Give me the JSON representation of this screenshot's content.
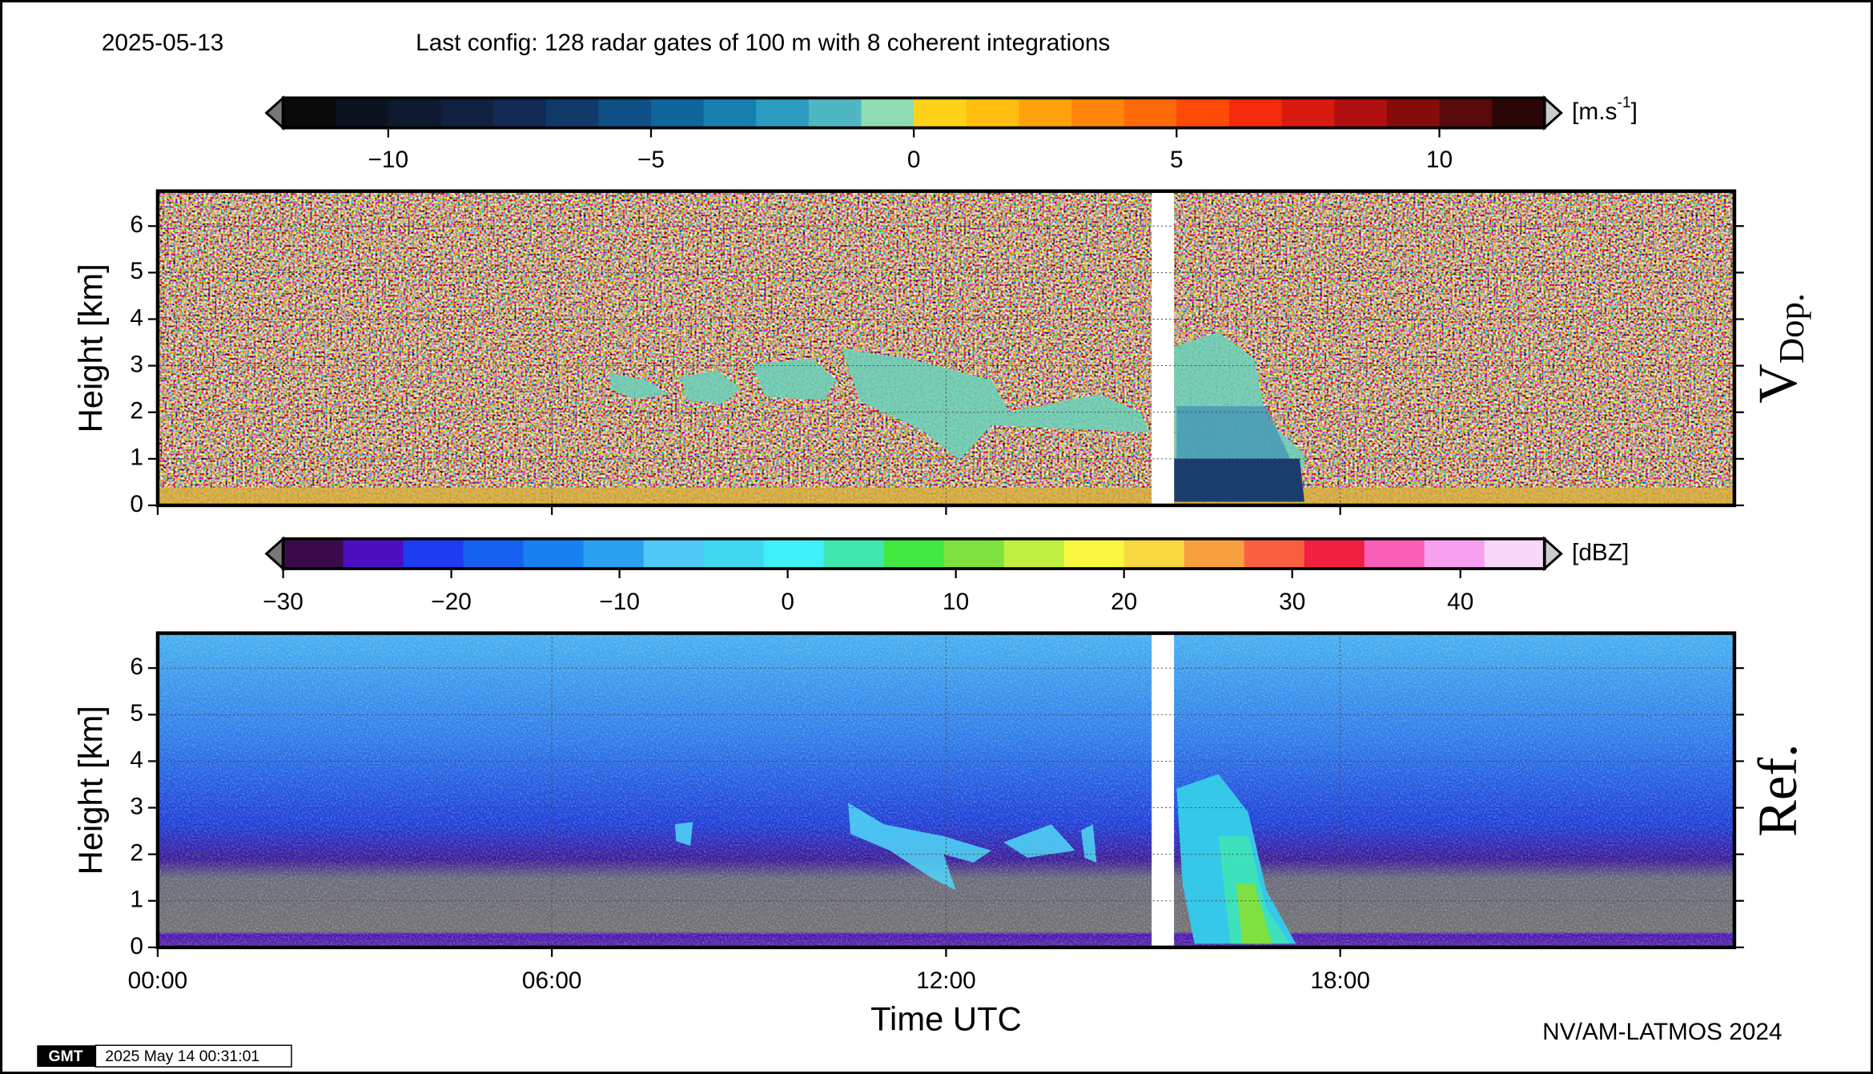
{
  "header": {
    "date": "2025-05-13",
    "config": "Last config: 128 radar gates of 100 m with 8 coherent integrations"
  },
  "chart_data": [
    {
      "type": "heatmap",
      "panel_label": "V",
      "panel_label_sub": "Dop.",
      "ylabel": "Height [km]",
      "xlim": [
        0,
        24
      ],
      "ylim": [
        0,
        6.75
      ],
      "yticks": [
        0,
        1,
        2,
        3,
        4,
        5,
        6
      ],
      "grid": true,
      "gap": [
        15.13,
        15.47
      ],
      "colorbar": {
        "unit": "[m.s",
        "unit_sup": "-1",
        "unit_end": "]",
        "lim": [
          -12,
          12
        ],
        "ticks": [
          {
            "value": -10,
            "label": "−10"
          },
          {
            "value": -5,
            "label": "−5"
          },
          0,
          5,
          10
        ],
        "colors": [
          "#0a0a0a",
          "#0c1220",
          "#0e1a30",
          "#0f2040",
          "#102a55",
          "#113a6b",
          "#0f4f85",
          "#10669c",
          "#1880b0",
          "#2d9bc0",
          "#4fb7c2",
          "#8fdcb0",
          "#ffd21a",
          "#ffbe10",
          "#ffa30c",
          "#ff860a",
          "#ff6a08",
          "#ff4a06",
          "#f52a0a",
          "#d81a10",
          "#b01010",
          "#860c0c",
          "#5a0a0a",
          "#2a0606"
        ]
      }
    },
    {
      "type": "heatmap",
      "panel_label": "Ref.",
      "ylabel": "Height [km]",
      "xlabel": "Time UTC",
      "xlim": [
        0,
        24
      ],
      "ylim": [
        0,
        6.75
      ],
      "yticks": [
        0,
        1,
        2,
        3,
        4,
        5,
        6
      ],
      "grid": true,
      "gap": [
        15.13,
        15.47
      ],
      "xticks": [
        {
          "value": 0,
          "label": "00:00"
        },
        {
          "value": 6,
          "label": "06:00"
        },
        {
          "value": 12,
          "label": "12:00"
        },
        {
          "value": 18,
          "label": "18:00"
        }
      ],
      "colorbar": {
        "unit": "[dBZ]",
        "lim": [
          -30,
          45
        ],
        "ticks": [
          {
            "value": -30,
            "label": "−30"
          },
          {
            "value": -20,
            "label": "−20"
          },
          {
            "value": -10,
            "label": "−10"
          },
          0,
          10,
          20,
          30,
          40
        ],
        "colors": [
          "#3b0a4a",
          "#4a10c0",
          "#1e3cf0",
          "#1660f0",
          "#1880f0",
          "#2aa0f0",
          "#50c8f8",
          "#40d8f0",
          "#40f0f8",
          "#40e8b0",
          "#40e840",
          "#80e040",
          "#c0f040",
          "#f8f840",
          "#f8d840",
          "#f8a040",
          "#f86040",
          "#f02040",
          "#f860b8",
          "#f8a0f0",
          "#f8d8f8"
        ]
      }
    }
  ],
  "credit": "NV/AM-LATMOS 2024",
  "stamp": {
    "logo": "GMT",
    "time": "2025 May 14 00:31:01"
  }
}
